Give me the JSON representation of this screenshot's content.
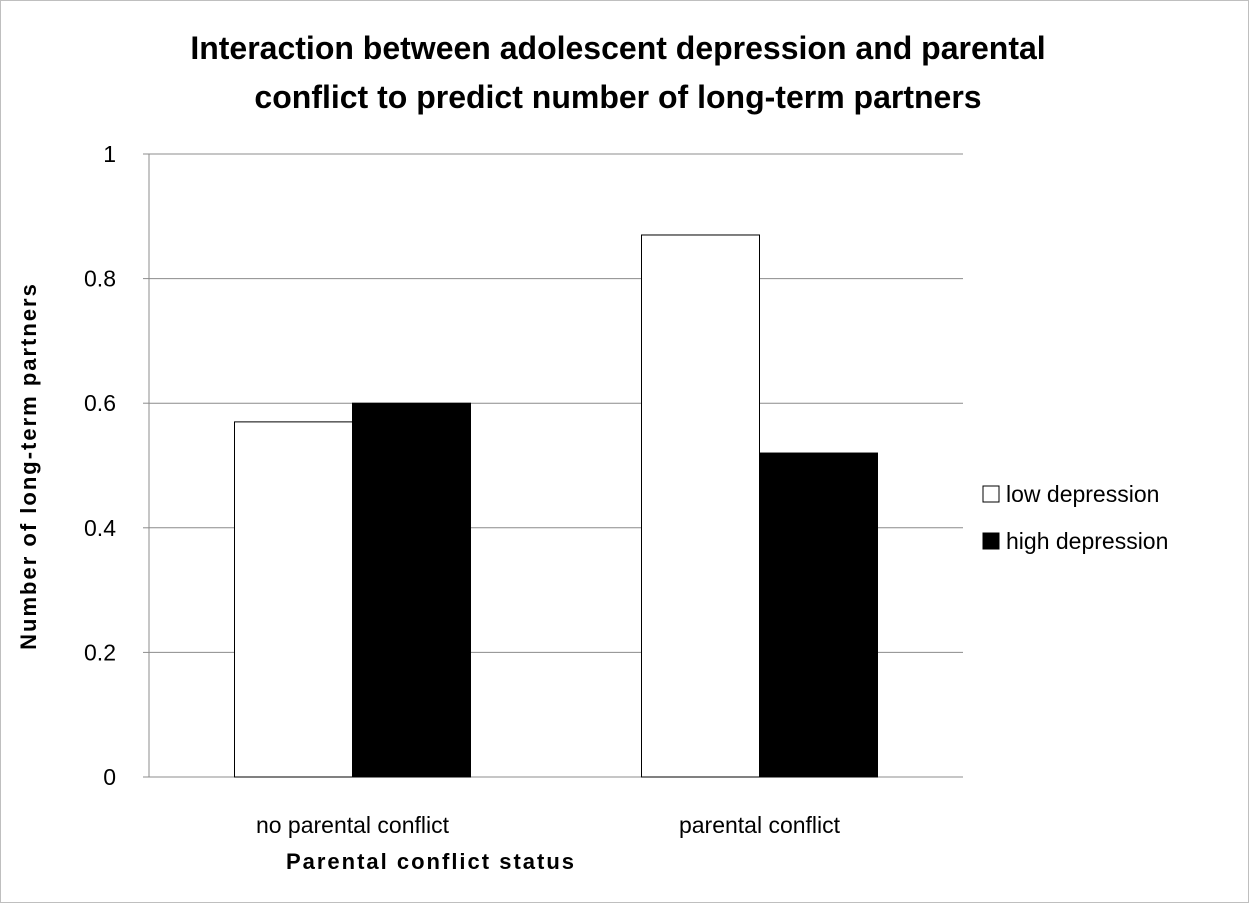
{
  "chart_data": {
    "type": "bar",
    "title_lines": [
      "Interaction between adolescent depression and parental",
      "conflict to predict number of long-term partners"
    ],
    "xlabel": "Parental conflict status",
    "ylabel": "Number of long-term partners",
    "categories": [
      "no parental conflict",
      "parental conflict"
    ],
    "series": [
      {
        "name": "low depression",
        "values": [
          0.57,
          0.87
        ],
        "color": "#ffffff"
      },
      {
        "name": "high depression",
        "values": [
          0.6,
          0.52
        ],
        "color": "#000000"
      }
    ],
    "ylim": [
      0,
      1
    ],
    "yticks": [
      0,
      0.2,
      0.4,
      0.6,
      0.8,
      1
    ],
    "ytick_labels": [
      "0",
      "0.2",
      "0.4",
      "0.6",
      "0.8",
      "1"
    ],
    "grid": true,
    "legend_position": "right"
  }
}
